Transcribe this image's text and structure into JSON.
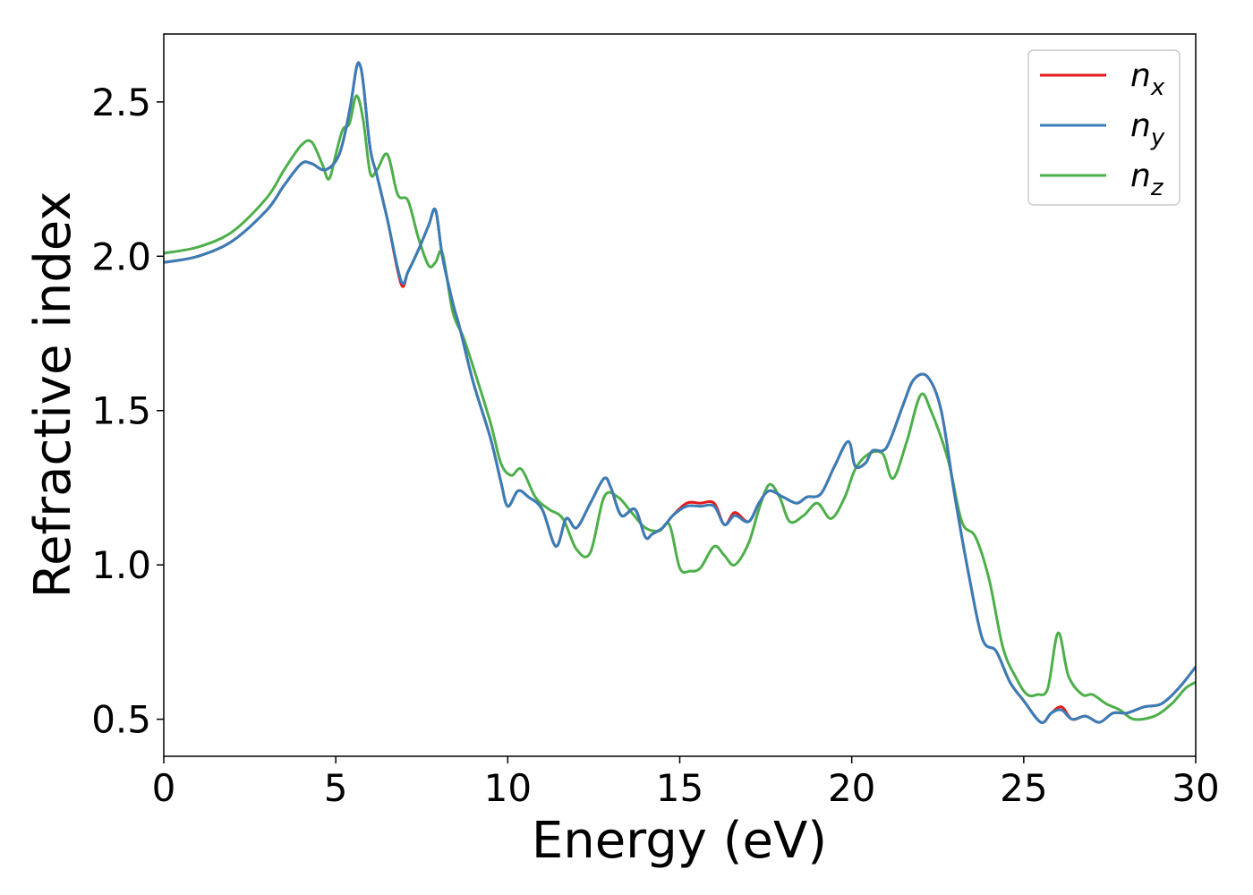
{
  "chart_data": {
    "type": "line",
    "xlabel": "Energy (eV)",
    "ylabel": "Refractive index",
    "xlim": [
      0,
      30
    ],
    "ylim": [
      0.38,
      2.72
    ],
    "xticks": [
      0,
      5,
      10,
      15,
      20,
      25,
      30
    ],
    "yticks": [
      0.5,
      1.0,
      1.5,
      2.0,
      2.5
    ],
    "xtick_labels": [
      "0",
      "5",
      "10",
      "15",
      "20",
      "25",
      "30"
    ],
    "ytick_labels": [
      "0.5",
      "1.0",
      "1.5",
      "2.0",
      "2.5"
    ],
    "grid": false,
    "legend_position": "top-right",
    "series": [
      {
        "name": "n",
        "subscript": "x",
        "color": "#e41a1c",
        "x": [
          0,
          1,
          2,
          3,
          3.5,
          4,
          4.3,
          4.7,
          5.1,
          5.4,
          5.6,
          5.7,
          5.8,
          6.0,
          6.2,
          6.5,
          6.9,
          7.1,
          7.4,
          7.7,
          7.9,
          8.1,
          8.4,
          8.6,
          9.0,
          9.5,
          9.8,
          10.0,
          10.3,
          10.6,
          11.0,
          11.4,
          11.7,
          12.0,
          12.4,
          12.8,
          13.0,
          13.3,
          13.7,
          14.0,
          14.2,
          14.5,
          14.8,
          15.2,
          15.6,
          16.0,
          16.3,
          16.6,
          17.0,
          17.3,
          17.6,
          18.0,
          18.4,
          18.7,
          19.1,
          19.5,
          19.9,
          20.1,
          20.4,
          20.6,
          20.9,
          21.1,
          21.5,
          21.8,
          22.2,
          22.6,
          23.0,
          23.4,
          23.8,
          24.2,
          24.6,
          25.0,
          25.5,
          25.8,
          26.1,
          26.4,
          26.8,
          27.2,
          27.6,
          28.0,
          28.5,
          29.0,
          29.5,
          30.0
        ],
        "values": [
          1.98,
          2.0,
          2.05,
          2.15,
          2.23,
          2.3,
          2.3,
          2.28,
          2.33,
          2.47,
          2.61,
          2.62,
          2.56,
          2.35,
          2.26,
          2.12,
          1.91,
          1.95,
          2.02,
          2.1,
          2.15,
          2.0,
          1.85,
          1.77,
          1.59,
          1.41,
          1.27,
          1.19,
          1.24,
          1.22,
          1.18,
          1.06,
          1.15,
          1.12,
          1.2,
          1.28,
          1.25,
          1.16,
          1.18,
          1.09,
          1.1,
          1.12,
          1.16,
          1.2,
          1.2,
          1.2,
          1.13,
          1.17,
          1.14,
          1.2,
          1.24,
          1.22,
          1.2,
          1.22,
          1.23,
          1.32,
          1.4,
          1.32,
          1.33,
          1.37,
          1.37,
          1.4,
          1.52,
          1.6,
          1.61,
          1.5,
          1.22,
          0.97,
          0.76,
          0.72,
          0.62,
          0.56,
          0.49,
          0.52,
          0.54,
          0.5,
          0.51,
          0.49,
          0.52,
          0.52,
          0.54,
          0.55,
          0.6,
          0.67
        ]
      },
      {
        "name": "n",
        "subscript": "y",
        "color": "#377eb8",
        "x": [
          0,
          1,
          2,
          3,
          3.5,
          4,
          4.3,
          4.7,
          5.1,
          5.4,
          5.6,
          5.7,
          5.8,
          6.0,
          6.2,
          6.5,
          6.9,
          7.1,
          7.4,
          7.7,
          7.9,
          8.1,
          8.4,
          8.6,
          9.0,
          9.5,
          9.8,
          10.0,
          10.3,
          10.6,
          11.0,
          11.4,
          11.7,
          12.0,
          12.4,
          12.8,
          13.0,
          13.3,
          13.7,
          14.0,
          14.2,
          14.5,
          14.8,
          15.2,
          15.6,
          16.0,
          16.3,
          16.6,
          17.0,
          17.3,
          17.6,
          18.0,
          18.4,
          18.7,
          19.1,
          19.5,
          19.9,
          20.1,
          20.4,
          20.6,
          20.9,
          21.1,
          21.5,
          21.8,
          22.2,
          22.6,
          23.0,
          23.4,
          23.8,
          24.2,
          24.6,
          25.0,
          25.5,
          25.8,
          26.1,
          26.4,
          26.8,
          27.2,
          27.6,
          28.0,
          28.5,
          29.0,
          29.5,
          30.0
        ],
        "values": [
          1.98,
          2.0,
          2.05,
          2.15,
          2.23,
          2.3,
          2.3,
          2.28,
          2.33,
          2.47,
          2.61,
          2.62,
          2.56,
          2.35,
          2.26,
          2.12,
          1.92,
          1.95,
          2.02,
          2.1,
          2.15,
          2.0,
          1.85,
          1.77,
          1.59,
          1.41,
          1.27,
          1.19,
          1.24,
          1.22,
          1.18,
          1.06,
          1.15,
          1.12,
          1.2,
          1.28,
          1.25,
          1.16,
          1.18,
          1.09,
          1.1,
          1.12,
          1.16,
          1.19,
          1.19,
          1.19,
          1.13,
          1.16,
          1.14,
          1.2,
          1.24,
          1.22,
          1.2,
          1.22,
          1.23,
          1.32,
          1.4,
          1.32,
          1.33,
          1.37,
          1.37,
          1.4,
          1.52,
          1.6,
          1.61,
          1.5,
          1.22,
          0.97,
          0.76,
          0.72,
          0.62,
          0.56,
          0.49,
          0.52,
          0.53,
          0.5,
          0.51,
          0.49,
          0.52,
          0.52,
          0.54,
          0.55,
          0.6,
          0.67
        ]
      },
      {
        "name": "n",
        "subscript": "z",
        "color": "#4daf4a",
        "x": [
          0,
          1,
          2,
          3,
          3.5,
          4,
          4.3,
          4.6,
          4.8,
          5.0,
          5.2,
          5.4,
          5.6,
          5.8,
          6.0,
          6.2,
          6.5,
          6.8,
          7.1,
          7.4,
          7.7,
          7.9,
          8.1,
          8.4,
          8.7,
          9.0,
          9.5,
          9.8,
          10.1,
          10.4,
          10.8,
          11.2,
          11.6,
          12.0,
          12.4,
          12.8,
          13.2,
          13.6,
          14.0,
          14.4,
          14.7,
          15.0,
          15.3,
          15.6,
          16.0,
          16.3,
          16.6,
          17.0,
          17.3,
          17.6,
          17.9,
          18.2,
          18.6,
          19.0,
          19.4,
          19.8,
          20.1,
          20.5,
          20.9,
          21.2,
          21.6,
          22.0,
          22.3,
          22.8,
          23.2,
          23.6,
          24.0,
          24.4,
          24.8,
          25.1,
          25.4,
          25.7,
          26.0,
          26.3,
          26.7,
          27.0,
          27.4,
          27.8,
          28.2,
          28.8,
          29.3,
          29.7,
          30.0
        ],
        "values": [
          2.01,
          2.03,
          2.08,
          2.19,
          2.28,
          2.36,
          2.37,
          2.3,
          2.25,
          2.33,
          2.41,
          2.43,
          2.52,
          2.44,
          2.27,
          2.28,
          2.33,
          2.2,
          2.18,
          2.06,
          1.97,
          1.98,
          2.01,
          1.82,
          1.74,
          1.64,
          1.46,
          1.33,
          1.29,
          1.31,
          1.22,
          1.18,
          1.15,
          1.05,
          1.04,
          1.22,
          1.22,
          1.17,
          1.12,
          1.11,
          1.13,
          0.99,
          0.98,
          0.99,
          1.06,
          1.03,
          1.0,
          1.07,
          1.18,
          1.26,
          1.22,
          1.14,
          1.16,
          1.2,
          1.15,
          1.22,
          1.31,
          1.36,
          1.36,
          1.28,
          1.4,
          1.55,
          1.5,
          1.34,
          1.14,
          1.09,
          0.95,
          0.73,
          0.63,
          0.58,
          0.58,
          0.6,
          0.78,
          0.64,
          0.58,
          0.58,
          0.55,
          0.53,
          0.5,
          0.51,
          0.55,
          0.6,
          0.62
        ]
      }
    ]
  }
}
